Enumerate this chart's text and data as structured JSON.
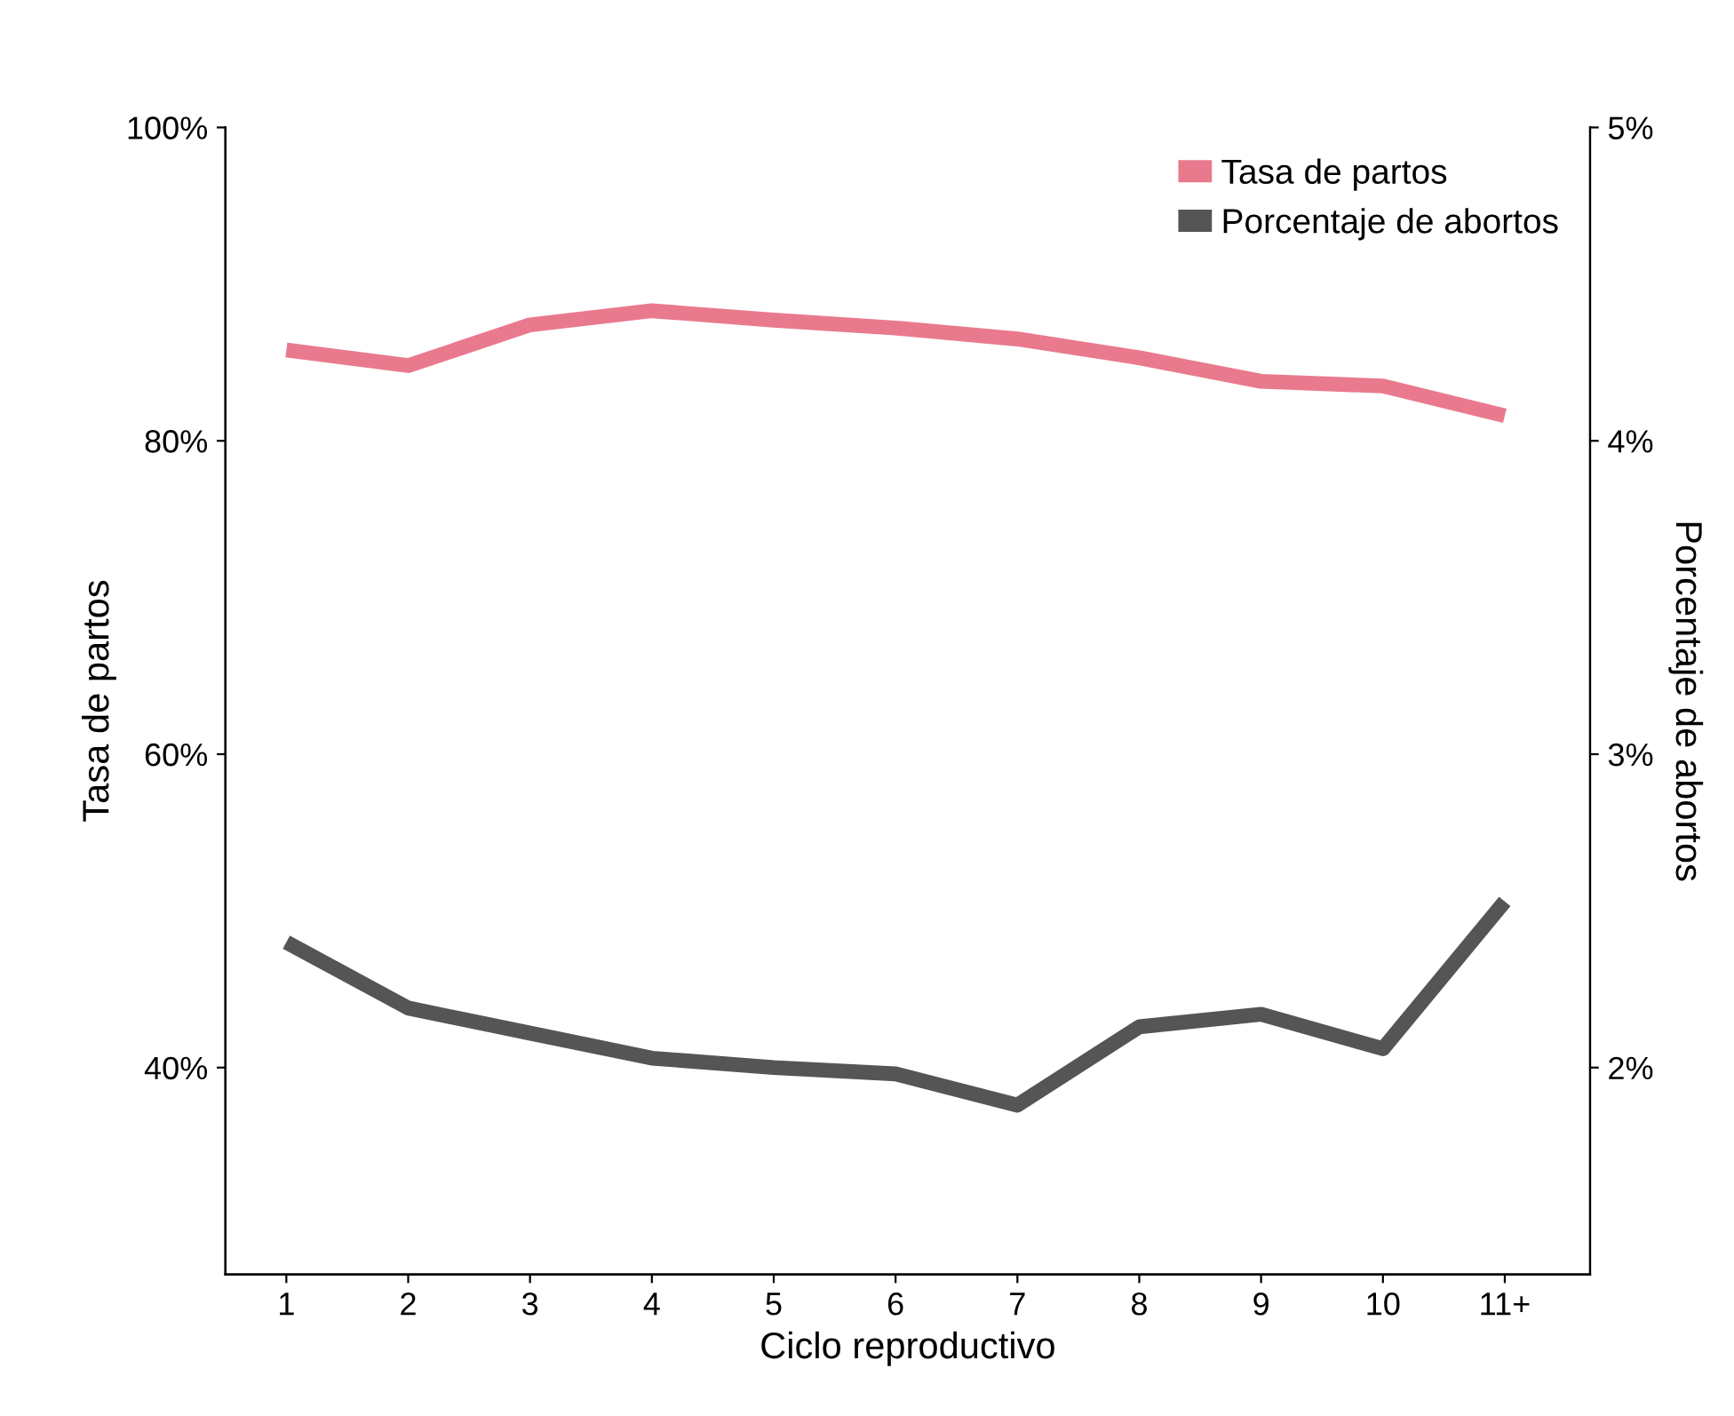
{
  "chart_data": {
    "type": "line",
    "xlabel": "Ciclo reproductivo",
    "ylabel": "Tasa de partos",
    "y2label": "Porcentaje de abortos",
    "categories": [
      "1",
      "2",
      "3",
      "4",
      "5",
      "6",
      "7",
      "8",
      "9",
      "10",
      "11+"
    ],
    "series": [
      {
        "name": "Tasa de partos",
        "color": "#e97a8e",
        "values": [
          85.8,
          84.8,
          87.4,
          88.3,
          87.7,
          87.2,
          86.5,
          85.3,
          83.8,
          83.5,
          81.6
        ]
      },
      {
        "name": "Porcentaje de abortos",
        "color": "#555555",
        "axis": "y2",
        "values": [
          2.4,
          2.19,
          2.11,
          2.03,
          2.0,
          1.98,
          1.88,
          2.13,
          2.17,
          2.06,
          2.53
        ]
      }
    ],
    "ylim": [
      26.8,
      100
    ],
    "yticks": [
      {
        "value": 40,
        "label": "40%"
      },
      {
        "value": 60,
        "label": "60%"
      },
      {
        "value": 80,
        "label": "80%"
      },
      {
        "value": 100,
        "label": "100%"
      }
    ],
    "y2lim": [
      1.34,
      5
    ],
    "y2ticks": [
      {
        "value": 2,
        "label": "2%"
      },
      {
        "value": 3,
        "label": "3%"
      },
      {
        "value": 4,
        "label": "4%"
      },
      {
        "value": 5,
        "label": "5%"
      }
    ],
    "legend": "top right",
    "grid": false,
    "marker": "none",
    "line_style": "solid"
  }
}
